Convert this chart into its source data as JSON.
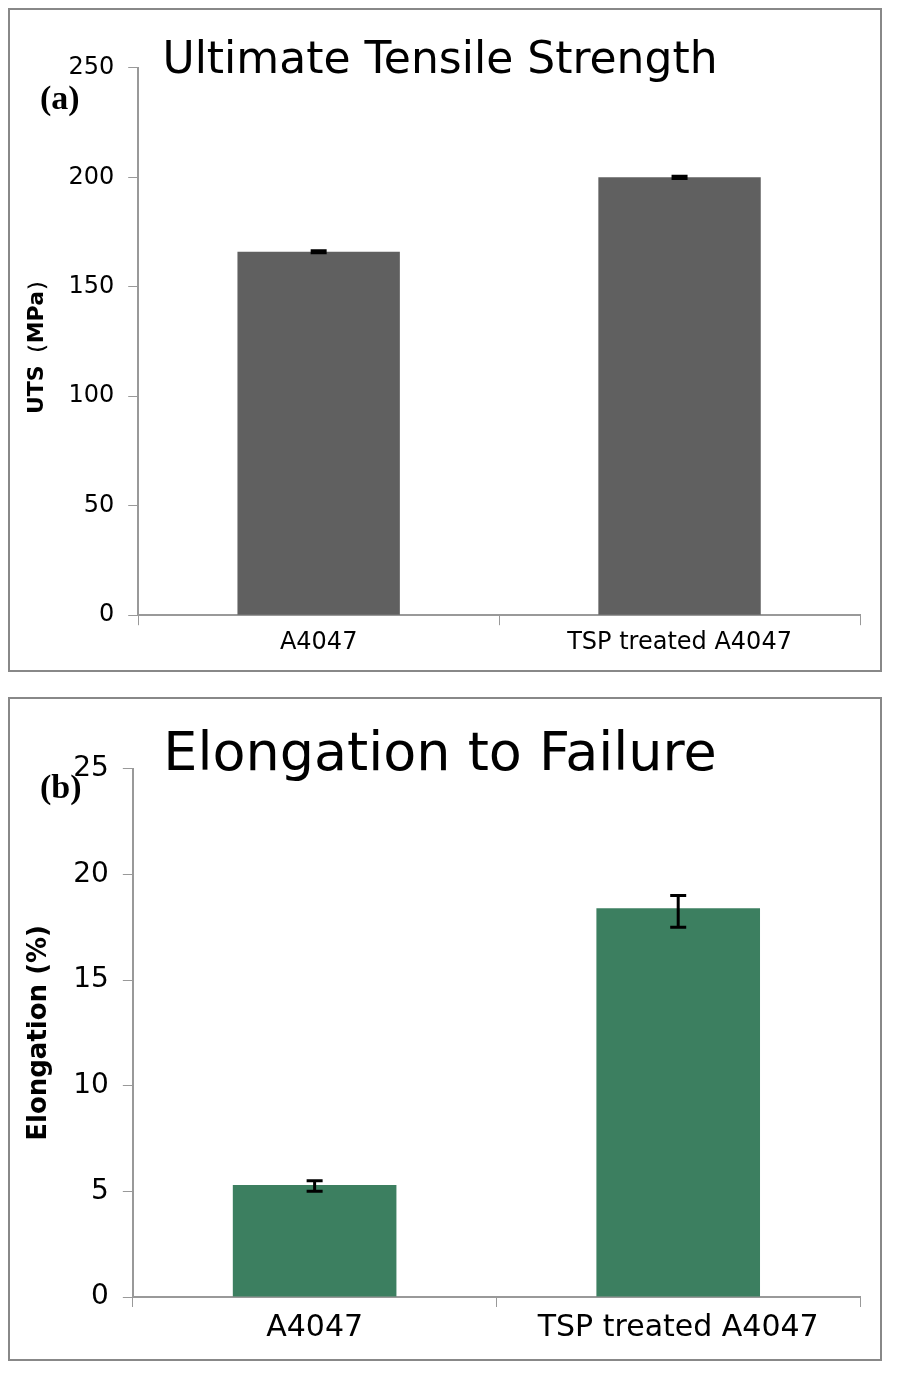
{
  "chart_data": [
    {
      "type": "bar",
      "title": "Ultimate Tensile Strength",
      "ylabel": "UTS（MPa）",
      "categories": [
        "A4047",
        "TSP treated A4047"
      ],
      "values": [
        166,
        200
      ],
      "errors": [
        0.5,
        0.5
      ],
      "color": "#606060",
      "ylim": [
        0,
        250
      ],
      "yticks": [
        0,
        50,
        100,
        150,
        200,
        250
      ],
      "grid": false,
      "legend": false,
      "annotations": [
        "(a)"
      ]
    },
    {
      "type": "bar",
      "title": "Elongation to Failure",
      "ylabel": "Elongation (%)",
      "categories": [
        "A4047",
        "TSP treated A4047"
      ],
      "values": [
        5.3,
        18.4
      ],
      "errors": [
        [
          5.0,
          5.5
        ],
        [
          17.5,
          19.0
        ]
      ],
      "color": "#3c7f60",
      "ylim": [
        0,
        25
      ],
      "yticks": [
        0,
        5,
        10,
        15,
        20,
        25
      ],
      "grid": false,
      "legend": false,
      "annotations": [
        "(b)"
      ]
    }
  ]
}
